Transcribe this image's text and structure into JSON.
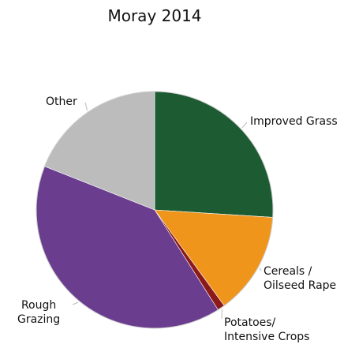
{
  "chart_data": {
    "type": "pie",
    "title": "Moray 2014",
    "categories": [
      "Improved Grass",
      "Cereals /\nOilseed Rape",
      "Potatoes/\nIntensive Crops",
      "Rough\nGrazing",
      "Other"
    ],
    "values": [
      26,
      14,
      1,
      40,
      19
    ],
    "colors": [
      "#1d5b33",
      "#f0951c",
      "#8b1a1a",
      "#6a3d8f",
      "#bcbcbc"
    ]
  }
}
